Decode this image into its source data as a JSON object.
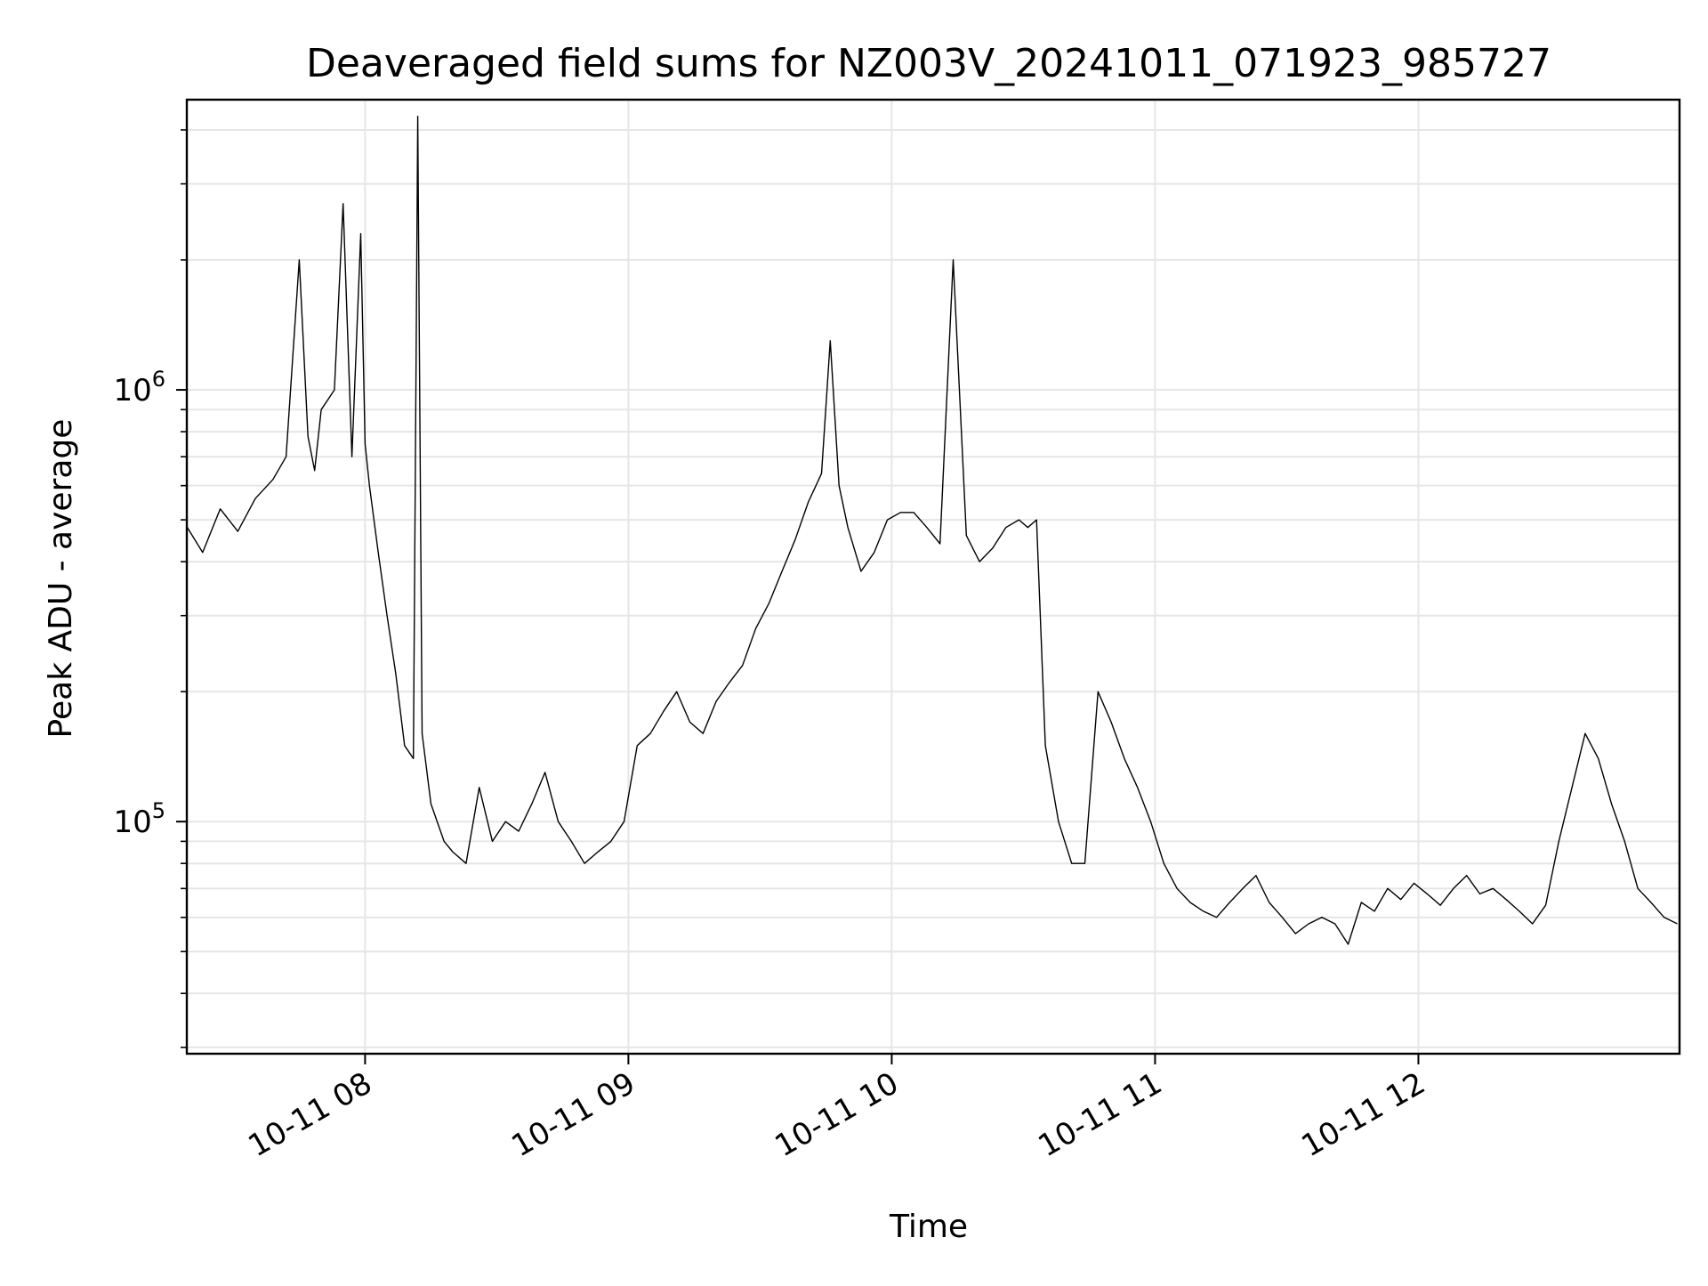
{
  "chart_data": {
    "type": "line",
    "title": "Deaveraged field sums for NZ003V_20241011_071923_985727",
    "xlabel": "Time",
    "ylabel": "Peak ADU - average",
    "y_scale": "log",
    "ylim": [
      29000,
      4700000
    ],
    "xlim": [
      "2024-10-11T07:19:23",
      "2024-10-11T12:59:30"
    ],
    "grid": true,
    "line_color": "#000000",
    "x_ticks": [
      {
        "value": "2024-10-11T08:00:00",
        "label": "10-11 08"
      },
      {
        "value": "2024-10-11T09:00:00",
        "label": "10-11 09"
      },
      {
        "value": "2024-10-11T10:00:00",
        "label": "10-11 10"
      },
      {
        "value": "2024-10-11T11:00:00",
        "label": "10-11 11"
      },
      {
        "value": "2024-10-11T12:00:00",
        "label": "10-11 12"
      }
    ],
    "y_major_ticks": [
      {
        "value": 100000,
        "base": "10",
        "exp": "5"
      },
      {
        "value": 1000000,
        "base": "10",
        "exp": "6"
      }
    ],
    "series": [
      {
        "x": [
          "2024-10-11T07:19:30",
          "2024-10-11T07:23:00",
          "2024-10-11T07:27:00",
          "2024-10-11T07:31:00",
          "2024-10-11T07:35:00",
          "2024-10-11T07:39:00",
          "2024-10-11T07:42:00",
          "2024-10-11T07:45:00",
          "2024-10-11T07:47:00",
          "2024-10-11T07:48:30",
          "2024-10-11T07:50:00",
          "2024-10-11T07:53:00",
          "2024-10-11T07:55:00",
          "2024-10-11T07:57:00",
          "2024-10-11T07:59:00",
          "2024-10-11T08:00:00",
          "2024-10-11T08:01:00",
          "2024-10-11T08:03:00",
          "2024-10-11T08:05:00",
          "2024-10-11T08:07:00",
          "2024-10-11T08:09:00",
          "2024-10-11T08:11:00",
          "2024-10-11T08:12:00",
          "2024-10-11T08:13:00",
          "2024-10-11T08:15:00",
          "2024-10-11T08:18:00",
          "2024-10-11T08:20:00",
          "2024-10-11T08:23:00",
          "2024-10-11T08:26:00",
          "2024-10-11T08:29:00",
          "2024-10-11T08:32:00",
          "2024-10-11T08:35:00",
          "2024-10-11T08:38:00",
          "2024-10-11T08:41:00",
          "2024-10-11T08:44:00",
          "2024-10-11T08:47:00",
          "2024-10-11T08:50:00",
          "2024-10-11T08:53:00",
          "2024-10-11T08:56:00",
          "2024-10-11T08:59:00",
          "2024-10-11T09:02:00",
          "2024-10-11T09:05:00",
          "2024-10-11T09:08:00",
          "2024-10-11T09:11:00",
          "2024-10-11T09:14:00",
          "2024-10-11T09:17:00",
          "2024-10-11T09:20:00",
          "2024-10-11T09:23:00",
          "2024-10-11T09:26:00",
          "2024-10-11T09:29:00",
          "2024-10-11T09:32:00",
          "2024-10-11T09:35:00",
          "2024-10-11T09:38:00",
          "2024-10-11T09:41:00",
          "2024-10-11T09:44:00",
          "2024-10-11T09:46:00",
          "2024-10-11T09:48:00",
          "2024-10-11T09:50:00",
          "2024-10-11T09:53:00",
          "2024-10-11T09:56:00",
          "2024-10-11T09:59:00",
          "2024-10-11T10:02:00",
          "2024-10-11T10:05:00",
          "2024-10-11T10:08:00",
          "2024-10-11T10:11:00",
          "2024-10-11T10:14:00",
          "2024-10-11T10:17:00",
          "2024-10-11T10:20:00",
          "2024-10-11T10:23:00",
          "2024-10-11T10:26:00",
          "2024-10-11T10:29:00",
          "2024-10-11T10:31:00",
          "2024-10-11T10:33:00",
          "2024-10-11T10:35:00",
          "2024-10-11T10:38:00",
          "2024-10-11T10:41:00",
          "2024-10-11T10:44:00",
          "2024-10-11T10:47:00",
          "2024-10-11T10:50:00",
          "2024-10-11T10:53:00",
          "2024-10-11T10:56:00",
          "2024-10-11T10:59:00",
          "2024-10-11T11:02:00",
          "2024-10-11T11:05:00",
          "2024-10-11T11:08:00",
          "2024-10-11T11:11:00",
          "2024-10-11T11:14:00",
          "2024-10-11T11:17:00",
          "2024-10-11T11:20:00",
          "2024-10-11T11:23:00",
          "2024-10-11T11:26:00",
          "2024-10-11T11:29:00",
          "2024-10-11T11:32:00",
          "2024-10-11T11:35:00",
          "2024-10-11T11:38:00",
          "2024-10-11T11:41:00",
          "2024-10-11T11:44:00",
          "2024-10-11T11:47:00",
          "2024-10-11T11:50:00",
          "2024-10-11T11:53:00",
          "2024-10-11T11:56:00",
          "2024-10-11T11:59:00",
          "2024-10-11T12:02:00",
          "2024-10-11T12:05:00",
          "2024-10-11T12:08:00",
          "2024-10-11T12:11:00",
          "2024-10-11T12:14:00",
          "2024-10-11T12:17:00",
          "2024-10-11T12:20:00",
          "2024-10-11T12:23:00",
          "2024-10-11T12:26:00",
          "2024-10-11T12:29:00",
          "2024-10-11T12:32:00",
          "2024-10-11T12:35:00",
          "2024-10-11T12:38:00",
          "2024-10-11T12:41:00",
          "2024-10-11T12:44:00",
          "2024-10-11T12:47:00",
          "2024-10-11T12:50:00",
          "2024-10-11T12:53:00",
          "2024-10-11T12:56:00",
          "2024-10-11T12:59:00"
        ],
        "y": [
          480000,
          420000,
          530000,
          470000,
          560000,
          620000,
          700000,
          2000000,
          780000,
          650000,
          900000,
          1000000,
          2700000,
          700000,
          2300000,
          750000,
          600000,
          420000,
          300000,
          220000,
          150000,
          140000,
          4300000,
          160000,
          110000,
          90000,
          85000,
          80000,
          120000,
          90000,
          100000,
          95000,
          110000,
          130000,
          100000,
          90000,
          80000,
          85000,
          90000,
          100000,
          150000,
          160000,
          180000,
          200000,
          170000,
          160000,
          190000,
          210000,
          230000,
          280000,
          320000,
          380000,
          450000,
          550000,
          640000,
          1300000,
          600000,
          480000,
          380000,
          420000,
          500000,
          520000,
          520000,
          480000,
          440000,
          2000000,
          460000,
          400000,
          430000,
          480000,
          500000,
          480000,
          500000,
          150000,
          100000,
          80000,
          80000,
          200000,
          170000,
          140000,
          120000,
          100000,
          80000,
          70000,
          65000,
          62000,
          60000,
          65000,
          70000,
          75000,
          65000,
          60000,
          55000,
          58000,
          60000,
          58000,
          52000,
          65000,
          62000,
          70000,
          66000,
          72000,
          68000,
          64000,
          70000,
          75000,
          68000,
          70000,
          66000,
          62000,
          58000,
          64000,
          90000,
          120000,
          160000,
          140000,
          110000,
          90000,
          70000,
          65000,
          60000,
          58000
        ]
      }
    ]
  }
}
